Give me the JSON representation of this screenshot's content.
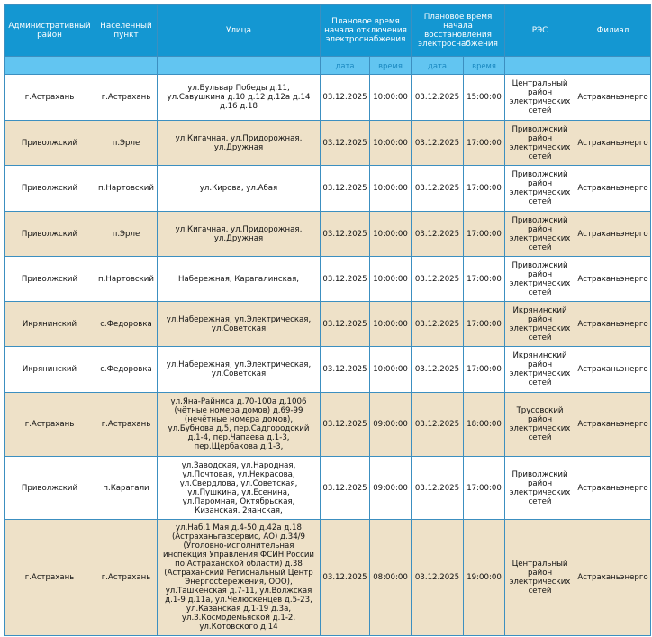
{
  "headers": {
    "district": "Административный район",
    "locality": "Населенный пункт",
    "street": "Улица",
    "off_start": "Плановое время начала отключения электроснабжения",
    "restore": "Плановое время начала восстановления электроснабжения",
    "res": "РЭС",
    "branch": "Филиал",
    "date": "дата",
    "time": "время"
  },
  "colors": {
    "header": "#1497d2",
    "subheader": "#62c5f1",
    "row_alt": "#eee1c8",
    "border": "#3c8fc0"
  },
  "rows": [
    {
      "district": "г.Астрахань",
      "locality": "г.Астрахань",
      "street": "ул.Бульвар Победы д.11, ул.Савушкина д.10 д.12 д.12а д.14 д.16 д.18",
      "off_date": "03.12.2025",
      "off_time": "10:00:00",
      "on_date": "03.12.2025",
      "on_time": "15:00:00",
      "res": "Центральный район электрических сетей",
      "branch": "Астраханьэнерго"
    },
    {
      "district": "Приволжский",
      "locality": "п.Эрле",
      "street": "ул.Кигачная, ул.Придорожная, ул.Дружная",
      "off_date": "03.12.2025",
      "off_time": "10:00:00",
      "on_date": "03.12.2025",
      "on_time": "17:00:00",
      "res": "Приволжский район электрических сетей",
      "branch": "Астраханьэнерго"
    },
    {
      "district": "Приволжский",
      "locality": "п.Нартовский",
      "street": "ул.Кирова, ул.Абая",
      "off_date": "03.12.2025",
      "off_time": "10:00:00",
      "on_date": "03.12.2025",
      "on_time": "17:00:00",
      "res": "Приволжский район электрических сетей",
      "branch": "Астраханьэнерго"
    },
    {
      "district": "Приволжский",
      "locality": "п.Эрле",
      "street": "ул.Кигачная, ул.Придорожная, ул.Дружная",
      "off_date": "03.12.2025",
      "off_time": "10:00:00",
      "on_date": "03.12.2025",
      "on_time": "17:00:00",
      "res": "Приволжский район электрических сетей",
      "branch": "Астраханьэнерго"
    },
    {
      "district": "Приволжский",
      "locality": "п.Нартовский",
      "street": "Набережная, Карагалинская,",
      "off_date": "03.12.2025",
      "off_time": "10:00:00",
      "on_date": "03.12.2025",
      "on_time": "17:00:00",
      "res": "Приволжский район электрических сетей",
      "branch": "Астраханьэнерго"
    },
    {
      "district": "Икрянинский",
      "locality": "с.Федоровка",
      "street": "ул.Набережная, ул.Электрическая, ул.Советская",
      "off_date": "03.12.2025",
      "off_time": "10:00:00",
      "on_date": "03.12.2025",
      "on_time": "17:00:00",
      "res": "Икрянинский район электрических сетей",
      "branch": "Астраханьэнерго"
    },
    {
      "district": "Икрянинский",
      "locality": "с.Федоровка",
      "street": "ул.Набережная, ул.Электрическая, ул.Советская",
      "off_date": "03.12.2025",
      "off_time": "10:00:00",
      "on_date": "03.12.2025",
      "on_time": "17:00:00",
      "res": "Икрянинский район электрических сетей",
      "branch": "Астраханьэнерго"
    },
    {
      "district": "г.Астрахань",
      "locality": "г.Астрахань",
      "street": "ул.Яна-Райниса д.70-100а д.1006 (чётные номера домов) д.69-99 (нечётные номера домов), ул.Бубнова д.5, пер.Садгородский д.1-4, пер.Чапаева д.1-3, пер.Щербакова д.1-3,",
      "off_date": "03.12.2025",
      "off_time": "09:00:00",
      "on_date": "03.12.2025",
      "on_time": "18:00:00",
      "res": "Трусовский район электрических сетей",
      "branch": "Астраханьэнерго"
    },
    {
      "district": "Приволжский",
      "locality": "п.Карагали",
      "street": "ул.Заводская, ул.Народная, ул.Почтовая, ул.Некрасова, ул.Свердлова, ул.Советская, ул.Пушкина, ул.Есенина, ул.Паромная, Октябрьская, Кизанская. 2яанская,",
      "off_date": "03.12.2025",
      "off_time": "09:00:00",
      "on_date": "03.12.2025",
      "on_time": "17:00:00",
      "res": "Приволжский район электрических сетей",
      "branch": "Астраханьэнерго"
    },
    {
      "district": "г.Астрахань",
      "locality": "г.Астрахань",
      "street": "ул.Наб.1 Мая д.4-50 д.42а д.18 (Астраханьгазсервис, АО) д.34/9 (Уголовно-исполнительная инспекция Управления ФСИН России по Астраханской области) д.38 (Астраханский Региональный Центр Энергосбережения, ООО), ул.Ташкенская д.7-11, ул.Волжская д.1-9 д.11а, ул.Челюскенцев д.5-23, ул.Казанская д.1-19 д.3а, ул.З.Космодемьяской д.1-2, ул.Котовского д.14",
      "off_date": "03.12.2025",
      "off_time": "08:00:00",
      "on_date": "03.12.2025",
      "on_time": "19:00:00",
      "res": "Центральный район электрических сетей",
      "branch": "Астраханьэнерго"
    }
  ]
}
